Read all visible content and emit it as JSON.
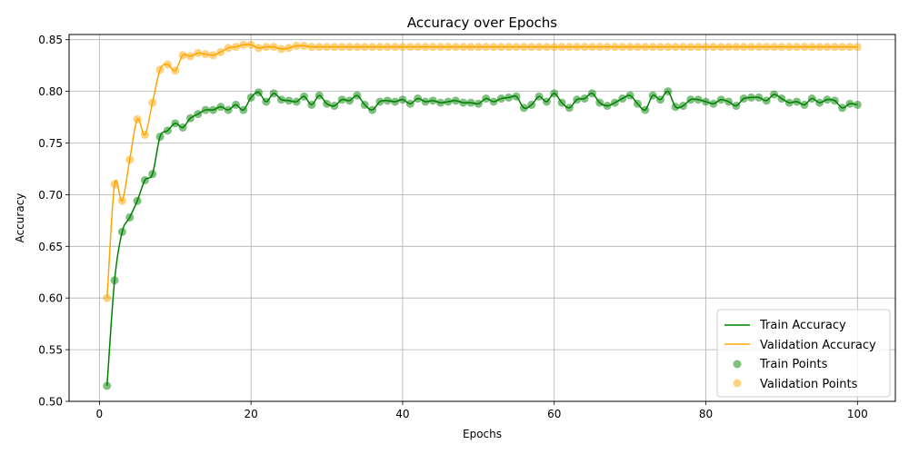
{
  "chart_data": {
    "type": "line",
    "title": "Accuracy over Epochs",
    "xlabel": "Epochs",
    "ylabel": "Accuracy",
    "xlim": [
      -4,
      105
    ],
    "ylim": [
      0.5,
      0.855
    ],
    "xticks": [
      0,
      20,
      40,
      60,
      80,
      100
    ],
    "yticks": [
      0.5,
      0.55,
      0.6,
      0.65,
      0.7,
      0.75,
      0.8,
      0.85
    ],
    "grid": true,
    "legend_position": "lower-right",
    "x": [
      1,
      2,
      3,
      4,
      5,
      6,
      7,
      8,
      9,
      10,
      11,
      12,
      13,
      14,
      15,
      16,
      17,
      18,
      19,
      20,
      21,
      22,
      23,
      24,
      25,
      26,
      27,
      28,
      29,
      30,
      31,
      32,
      33,
      34,
      35,
      36,
      37,
      38,
      39,
      40,
      41,
      42,
      43,
      44,
      45,
      46,
      47,
      48,
      49,
      50,
      51,
      52,
      53,
      54,
      55,
      56,
      57,
      58,
      59,
      60,
      61,
      62,
      63,
      64,
      65,
      66,
      67,
      68,
      69,
      70,
      71,
      72,
      73,
      74,
      75,
      76,
      77,
      78,
      79,
      80,
      81,
      82,
      83,
      84,
      85,
      86,
      87,
      88,
      89,
      90,
      91,
      92,
      93,
      94,
      95,
      96,
      97,
      98,
      99,
      100
    ],
    "series": [
      {
        "name": "Train Accuracy",
        "points_name": "Train Points",
        "color": "#008000",
        "values": [
          0.515,
          0.617,
          0.664,
          0.678,
          0.694,
          0.714,
          0.72,
          0.756,
          0.762,
          0.769,
          0.765,
          0.774,
          0.778,
          0.782,
          0.782,
          0.785,
          0.782,
          0.787,
          0.782,
          0.794,
          0.799,
          0.79,
          0.798,
          0.792,
          0.791,
          0.79,
          0.795,
          0.787,
          0.796,
          0.788,
          0.786,
          0.792,
          0.791,
          0.796,
          0.787,
          0.782,
          0.79,
          0.791,
          0.79,
          0.792,
          0.788,
          0.793,
          0.79,
          0.791,
          0.789,
          0.79,
          0.791,
          0.789,
          0.789,
          0.788,
          0.793,
          0.79,
          0.793,
          0.794,
          0.795,
          0.784,
          0.787,
          0.795,
          0.79,
          0.798,
          0.789,
          0.784,
          0.792,
          0.793,
          0.798,
          0.789,
          0.786,
          0.789,
          0.793,
          0.796,
          0.788,
          0.782,
          0.796,
          0.792,
          0.8,
          0.785,
          0.786,
          0.792,
          0.792,
          0.79,
          0.788,
          0.792,
          0.79,
          0.786,
          0.793,
          0.794,
          0.794,
          0.791,
          0.797,
          0.793,
          0.789,
          0.79,
          0.787,
          0.793,
          0.789,
          0.792,
          0.791,
          0.784,
          0.788,
          0.787
        ]
      },
      {
        "name": "Validation Accuracy",
        "points_name": "Validation Points",
        "color": "#ffa500",
        "values": [
          0.6,
          0.71,
          0.694,
          0.734,
          0.773,
          0.758,
          0.789,
          0.821,
          0.826,
          0.82,
          0.835,
          0.834,
          0.837,
          0.836,
          0.835,
          0.838,
          0.842,
          0.843,
          0.845,
          0.845,
          0.842,
          0.843,
          0.843,
          0.841,
          0.842,
          0.844,
          0.844,
          0.843,
          0.843,
          0.843,
          0.843,
          0.843,
          0.843,
          0.843,
          0.843,
          0.843,
          0.843,
          0.843,
          0.843,
          0.843,
          0.843,
          0.843,
          0.843,
          0.843,
          0.843,
          0.843,
          0.843,
          0.843,
          0.843,
          0.843,
          0.843,
          0.843,
          0.843,
          0.843,
          0.843,
          0.843,
          0.843,
          0.843,
          0.843,
          0.843,
          0.843,
          0.843,
          0.843,
          0.843,
          0.843,
          0.843,
          0.843,
          0.843,
          0.843,
          0.843,
          0.843,
          0.843,
          0.843,
          0.843,
          0.843,
          0.843,
          0.843,
          0.843,
          0.843,
          0.843,
          0.843,
          0.843,
          0.843,
          0.843,
          0.843,
          0.843,
          0.843,
          0.843,
          0.843,
          0.843,
          0.843,
          0.843,
          0.843,
          0.843,
          0.843,
          0.843,
          0.843,
          0.843,
          0.843,
          0.843
        ]
      }
    ]
  }
}
